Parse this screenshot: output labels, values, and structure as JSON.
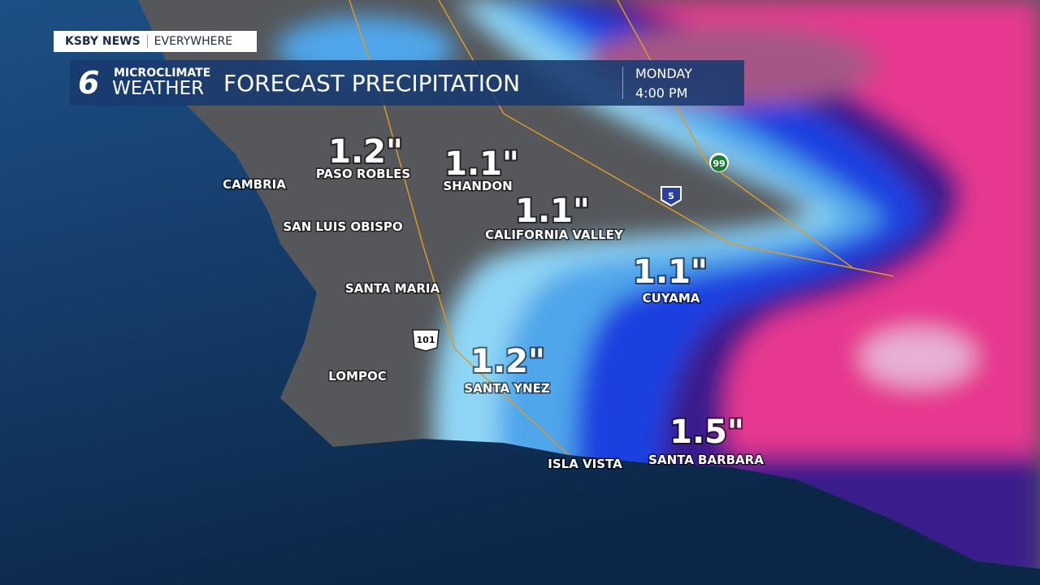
{
  "header": {
    "brand": "KSBY NEWS",
    "tagline": "EVERYWHERE",
    "logo_number": "6",
    "logo_top": "MICROCLIMATE",
    "logo_bottom": "WEATHER",
    "title": "FORECAST PRECIPITATION",
    "day": "MONDAY",
    "time": "4:00 PM"
  },
  "amounts": [
    {
      "amount": "1.2\"",
      "place": "PASO ROBLES"
    },
    {
      "amount": "1.1\"",
      "place": "SHANDON"
    },
    {
      "amount": "1.1\"",
      "place": "CALIFORNIA VALLEY"
    },
    {
      "amount": "1.1\"",
      "place": "CUYAMA"
    },
    {
      "amount": "1.2\"",
      "place": "SANTA YNEZ"
    },
    {
      "amount": "1.5\"",
      "place": "SANTA BARBARA"
    }
  ],
  "places": [
    "CAMBRIA",
    "SAN LUIS OBISPO",
    "SANTA MARIA",
    "LOMPOC",
    "ISLA VISTA"
  ],
  "shields": [
    "99",
    "5",
    "101"
  ]
}
